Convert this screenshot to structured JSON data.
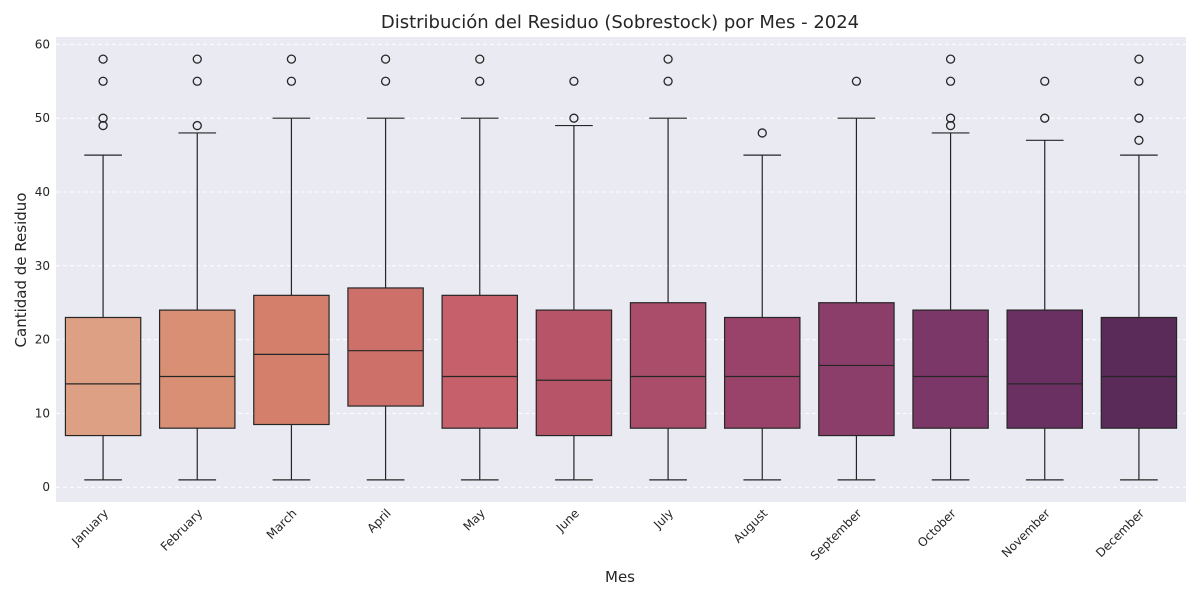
{
  "chart_data": {
    "type": "box",
    "title": "Distribución del Residuo (Sobrestock) por Mes - 2024",
    "xlabel": "Mes",
    "ylabel": "Cantidad de Residuo",
    "ylim": [
      -2,
      61
    ],
    "yticks": [
      0,
      10,
      20,
      30,
      40,
      50,
      60
    ],
    "grid": true,
    "categories": [
      "January",
      "February",
      "March",
      "April",
      "May",
      "June",
      "July",
      "August",
      "September",
      "October",
      "November",
      "December"
    ],
    "boxes": [
      {
        "min": 1,
        "q1": 7,
        "median": 14,
        "q3": 23,
        "max": 45,
        "outliers": [
          49,
          50,
          55,
          58
        ]
      },
      {
        "min": 1,
        "q1": 8,
        "median": 15,
        "q3": 24,
        "max": 48,
        "outliers": [
          49,
          55,
          58
        ]
      },
      {
        "min": 1,
        "q1": 8.5,
        "median": 18,
        "q3": 26,
        "max": 50,
        "outliers": [
          55,
          58
        ]
      },
      {
        "min": 1,
        "q1": 11,
        "median": 18.5,
        "q3": 27,
        "max": 50,
        "outliers": [
          55,
          58
        ]
      },
      {
        "min": 1,
        "q1": 8,
        "median": 15,
        "q3": 26,
        "max": 50,
        "outliers": [
          55,
          58
        ]
      },
      {
        "min": 1,
        "q1": 7,
        "median": 14.5,
        "q3": 24,
        "max": 49,
        "outliers": [
          50,
          55
        ]
      },
      {
        "min": 1,
        "q1": 8,
        "median": 15,
        "q3": 25,
        "max": 50,
        "outliers": [
          55,
          58
        ]
      },
      {
        "min": 1,
        "q1": 8,
        "median": 15,
        "q3": 23,
        "max": 45,
        "outliers": [
          48
        ]
      },
      {
        "min": 1,
        "q1": 7,
        "median": 16.5,
        "q3": 25,
        "max": 50,
        "outliers": [
          55
        ]
      },
      {
        "min": 1,
        "q1": 8,
        "median": 15,
        "q3": 24,
        "max": 48,
        "outliers": [
          49,
          50,
          55,
          58
        ]
      },
      {
        "min": 1,
        "q1": 8,
        "median": 14,
        "q3": 24,
        "max": 47,
        "outliers": [
          50,
          55
        ]
      },
      {
        "min": 1,
        "q1": 8,
        "median": 15,
        "q3": 23,
        "max": 45,
        "outliers": [
          47,
          50,
          55,
          58
        ]
      }
    ],
    "colors": [
      "#dea084",
      "#d98f73",
      "#d47f6c",
      "#cd706a",
      "#c6606a",
      "#b85468",
      "#a94d6a",
      "#9a436a",
      "#8b3e6a",
      "#7b3767",
      "#6b3062",
      "#5a2a59"
    ],
    "style": {
      "background": "#eaeaf2",
      "grid": "#ffffff",
      "line": "#262626"
    }
  }
}
